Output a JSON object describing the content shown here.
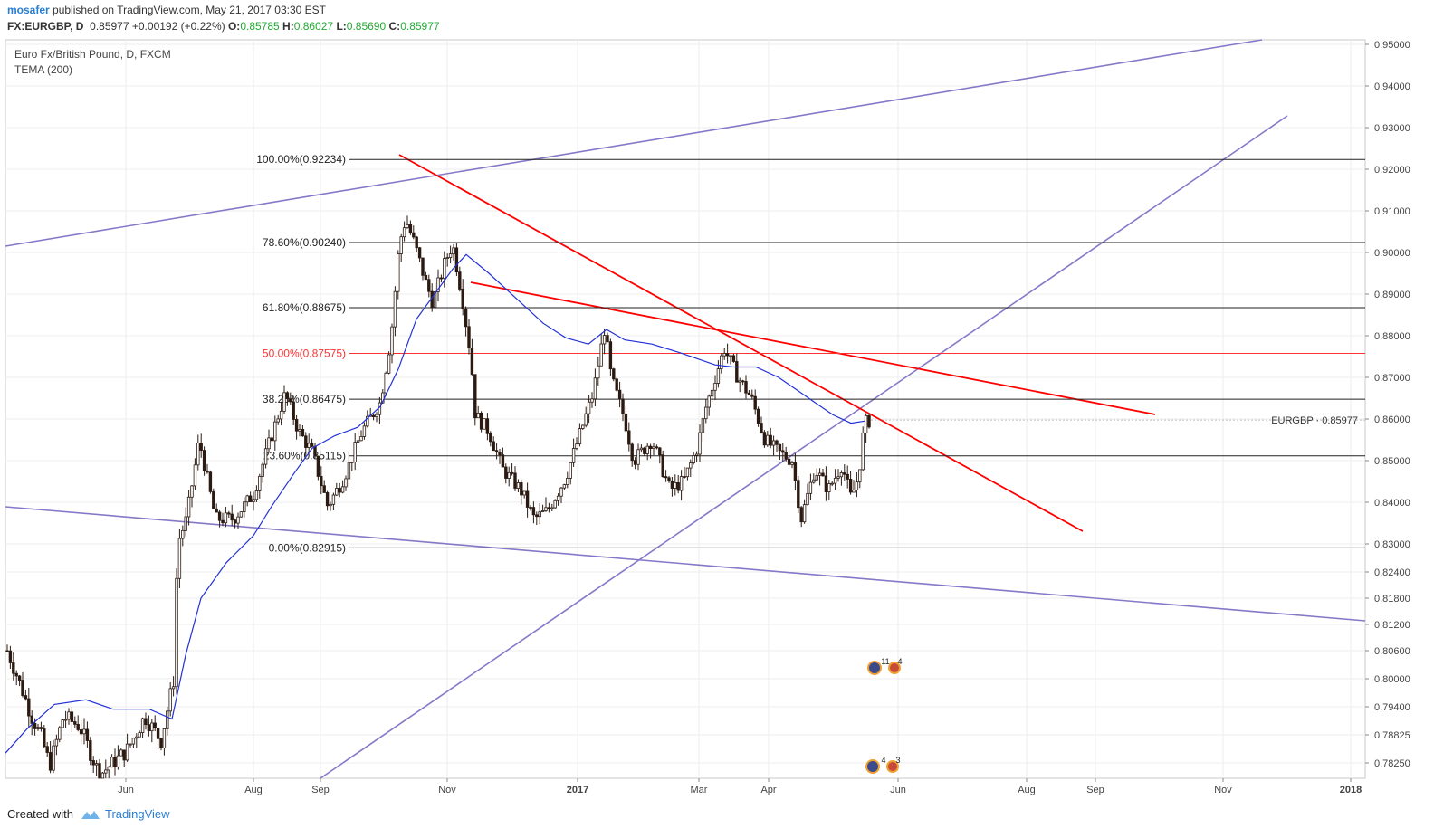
{
  "header": {
    "username": "mosafer",
    "published": "published on TradingView.com, May 21, 2017 03:30 EST",
    "symbol": "FX:EURGBP, D",
    "last": "0.85977",
    "change": "+0.00192 (+0.22%)",
    "o_label": "O:",
    "o_value": "0.85785",
    "h_label": "H:",
    "h_value": "0.86027",
    "l_label": "L:",
    "l_value": "0.85690",
    "c_label": "C:",
    "c_value": "0.85977"
  },
  "footer": {
    "created_with": "Created with",
    "brand": "TradingView"
  },
  "chart_data": {
    "type": "candlestick",
    "title": "Euro Fx/British Pound, D, FXCM",
    "indicator": "TEMA (200)",
    "price_label": "EURGBP · 0.85977",
    "last_price": 0.85977,
    "y_axis_ticks": [
      "0.95000",
      "0.94000",
      "0.93000",
      "0.92000",
      "0.91000",
      "0.90000",
      "0.89000",
      "0.88000",
      "0.87000",
      "0.86000",
      "0.85000",
      "0.84000",
      "0.83000",
      "0.82400",
      "0.81800",
      "0.81200",
      "0.80600",
      "0.80000",
      "0.79400",
      "0.78825",
      "0.78250"
    ],
    "x_axis_ticks": [
      "Jun",
      "Aug",
      "Sep",
      "Nov",
      "2017",
      "Mar",
      "Apr",
      "Jun",
      "Aug",
      "Sep",
      "Nov",
      "2018"
    ],
    "fibonacci": [
      {
        "label": "100.00%(0.92234)",
        "level": 0.92234
      },
      {
        "label": "78.60%(0.90240)",
        "level": 0.9024
      },
      {
        "label": "61.80%(0.88675)",
        "level": 0.88675
      },
      {
        "label": "50.00%(0.87575)",
        "level": 0.87575,
        "highlight": true
      },
      {
        "label": "38.20%(0.86475)",
        "level": 0.86475
      },
      {
        "label": "23.60%(0.85115)",
        "level": 0.85115
      },
      {
        "label": "0.00%(0.82915)",
        "level": 0.82915
      }
    ],
    "events": [
      "11",
      "4",
      "4",
      "3"
    ],
    "colors": {
      "up": "#ffffff",
      "down": "#2b1a12",
      "trend_red": "#ff0000",
      "channel": "#8678c8",
      "tema": "#2231d6",
      "fib": "#222222",
      "fib_highlight": "#ff3333"
    }
  }
}
